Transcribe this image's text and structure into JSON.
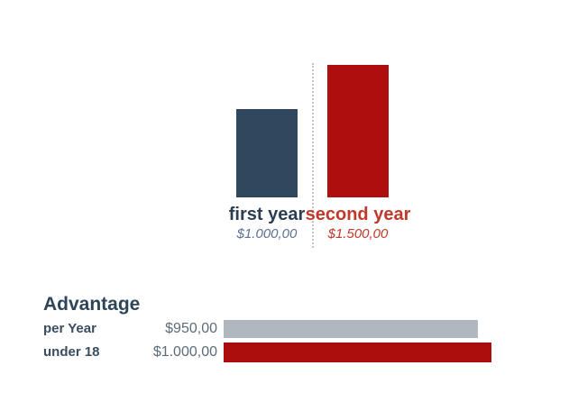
{
  "page": {
    "background": "#ffffff"
  },
  "chart_data": [
    {
      "type": "bar",
      "orientation": "vertical",
      "categories": [
        "first year",
        "second year"
      ],
      "values": [
        1000,
        1500
      ],
      "value_labels": [
        "$1.000,00",
        "$1.500,00"
      ],
      "bar_colors": [
        "#30485e",
        "#ae0e0e"
      ],
      "category_label_colors": [
        "#2b3f52",
        "#c0392b"
      ],
      "value_label_colors": [
        "#5b7292",
        "#c0392b"
      ],
      "ylim": [
        0,
        1500
      ],
      "grid": false,
      "legend": "none",
      "divider_color": "#c2c2c2"
    },
    {
      "type": "bar",
      "orientation": "horizontal",
      "title": "Advantage",
      "categories": [
        "per Year",
        "under 18"
      ],
      "values": [
        950,
        1000
      ],
      "value_labels": [
        "$950,00",
        "$1.000,00"
      ],
      "bar_colors": [
        "#b0b7bf",
        "#ab0d0d"
      ],
      "xlim": [
        0,
        1000
      ],
      "grid": false,
      "legend": "none"
    }
  ]
}
